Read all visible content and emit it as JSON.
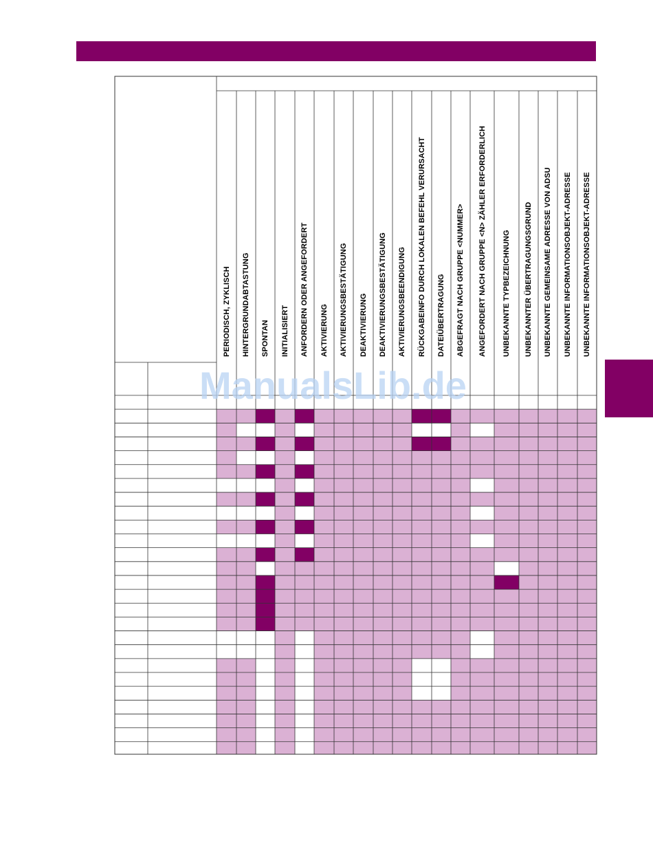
{
  "watermark": "ManualsLib.de",
  "columns": [
    "PERIODISCH, ZYKLISCH",
    "HINTERGRUNDABTASTUNG",
    "SPONTAN",
    "INITIALISIERT",
    "ANFORDERN ODER ANGEFORDERT",
    "AKTIVIERUNG",
    "AKTIVIERUNGSBESTÄTIGUNG",
    "DEAKTIVIERUNG",
    "DEAKTIVIERUNGSBESTÄTIGUNG",
    "AKTIVIERUNGSBEENDIGUNG",
    "RÜCKGABEINFO DURCH LOKALEN BEFEHL VERURSACHT",
    "DATEIÜBERTRAGUNG",
    "ABGEFRAGT NACH GRUPPE <NUMMER>",
    "ANGEFORDERT NACH GRUPPE <N> ZÄHLER ERFORDERLICH",
    "UNBEKANNTE TYPBEZEICHNUNG",
    "UNBEKANNTER ÜBERTRAGUNGSGRUND",
    "UNBEKANNTE GEMEINSAME ADRESSE VON ADSU",
    "UNBEKANNTE INFORMATIONSOBJEKT-ADRESSE",
    "UNBEKANNTE INFORMATIONSOBJEKT-ADRESSE"
  ],
  "colors": {
    "brand": "#820064",
    "light": "#dbb1d4",
    "white": "#ffffff"
  },
  "legend": "cell codes: L = light-shaded (not applicable), W = white (not used), D = dark-marked (used)",
  "grid_rows": [
    "WWWWWWWWWWWWWWWWWWW",
    "LLDLDLLLLLDDLLLLLLL",
    "LWWLWLLLLLWWLWLLLLL",
    "LLDLDLLLLLDDLLLLLLL",
    "LWWLWLLLLLLLLLLLLLL",
    "LLDLDLLLLLLLLLLLLLL",
    "WWWLWLLLLLLLLWLLLLL",
    "LLDLDLLLLLLLLLLLLLL",
    "WWWLWLLLLLLLLWLLLLL",
    "LLDLDLLLLLLLLLLLLLL",
    "WWWLWLLLLLLLLWLLLLL",
    "LLDLDLLLLLLLLLLLLLL",
    "LLWLLLLLLLLLLLWLLLL",
    "LLDLLLLLLLLLLLDLLLL",
    "LLDLLLLLLLLLLLLLLLL",
    "LLDLLLLLLLLLLLLLLLL",
    "LLDLLLLLLLLLLLLLLLL",
    "WWWLWLLLLLLLLWLLLLL",
    "WWWLWLLLLLLLLWLLLLL",
    "LLWLWLLLLLWWLLLLLLL",
    "LLWLWLLLLLWWLLLLLLL",
    "LLWLWLLLLLWWLLLLLLL",
    "LLWLWLLLLLLLLLLLLLL",
    "LLWLWLLLLLLLLLLLLLL",
    "LLWLWLLLLLLLLLLLLLL",
    "LLWLWLLLLLLLLLLLLLL"
  ]
}
